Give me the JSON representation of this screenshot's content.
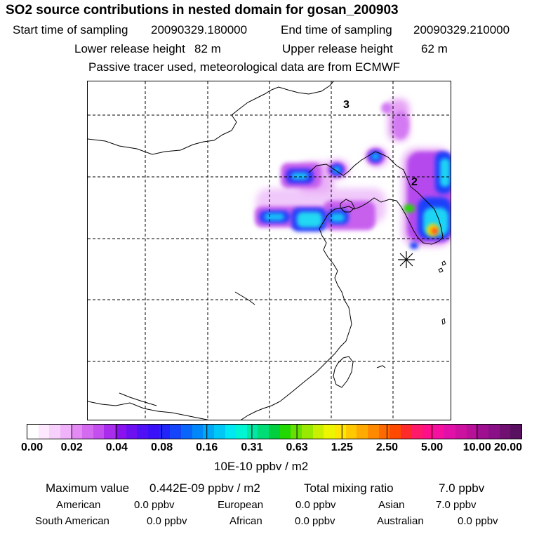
{
  "header": {
    "title": "SO2 source contributions in nested domain for gosan_200903",
    "start_label": "Start time of sampling",
    "start_value": "20090329.180000",
    "end_label": "End time of sampling",
    "end_value": "20090329.210000",
    "lower_label": "Lower release height",
    "lower_value": "82 m",
    "upper_label": "Upper release height",
    "upper_value": "62 m",
    "tracer_note": "Passive tracer used, meteorological data are from ECMWF"
  },
  "map": {
    "contour_labels": [
      "3",
      "2"
    ],
    "receptor_marker": "asterisk-icon"
  },
  "colorbar": {
    "colors": [
      "#ffffff",
      "#fde8fe",
      "#f8d0fc",
      "#f0b2f9",
      "#e38af4",
      "#d46af0",
      "#c44eee",
      "#aa2ded",
      "#8a12ef",
      "#6c10f2",
      "#5010f5",
      "#3a10f8",
      "#2225fa",
      "#1545fb",
      "#0a66fb",
      "#0088fa",
      "#00a8f8",
      "#00c8f6",
      "#00e8f2",
      "#00f5d5",
      "#00e8a4",
      "#00dd77",
      "#00d040",
      "#22d800",
      "#66e000",
      "#99e800",
      "#c8f000",
      "#eef500",
      "#ffe500",
      "#ffc800",
      "#ffaa00",
      "#ff8a00",
      "#ff6a00",
      "#ff4a00",
      "#ff2a2a",
      "#ff1a6a",
      "#ff108a",
      "#f510a0",
      "#e010a8",
      "#cc10a0",
      "#b81098",
      "#9e1090",
      "#8a1088",
      "#701070",
      "#5a1060"
    ],
    "tick_labels": [
      "0.00",
      "0.02",
      "0.04",
      "0.08",
      "0.16",
      "0.31",
      "0.63",
      "1.25",
      "2.50",
      "5.00",
      "10.00",
      "20.00"
    ],
    "unit": "10E-10 ppbv / m2"
  },
  "stats": {
    "max_label": "Maximum value",
    "max_value": "0.442E-09 ppbv / m2",
    "total_label": "Total mixing ratio",
    "total_value": "7.0 ppbv",
    "regions": [
      {
        "name": "American",
        "value": "0.0 ppbv"
      },
      {
        "name": "European",
        "value": "0.0 ppbv"
      },
      {
        "name": "Asian",
        "value": "7.0 ppbv"
      },
      {
        "name": "South American",
        "value": "0.0 ppbv"
      },
      {
        "name": "African",
        "value": "0.0 ppbv"
      },
      {
        "name": "Australian",
        "value": "0.0 ppbv"
      }
    ]
  }
}
